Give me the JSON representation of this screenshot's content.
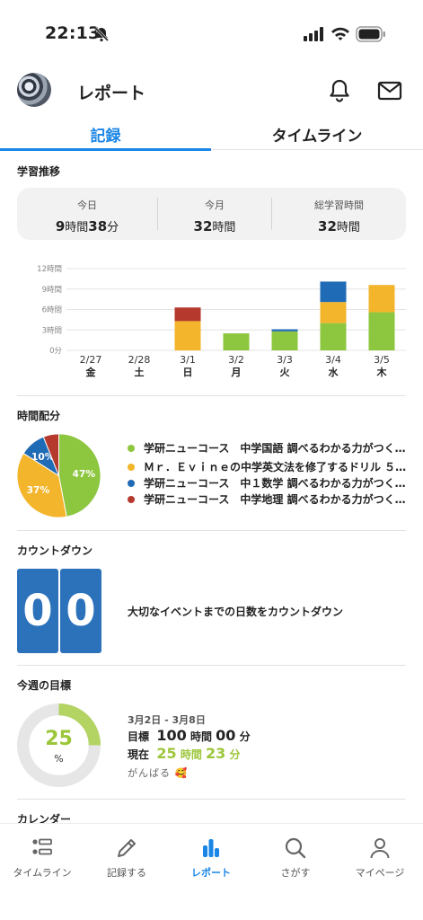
{
  "status": {
    "time": "22:13"
  },
  "header": {
    "title": "レポート"
  },
  "tabs": [
    {
      "label": "記録"
    },
    {
      "label": "タイムライン"
    }
  ],
  "study_trend": {
    "title": "学習推移",
    "summary": [
      {
        "label": "今日",
        "h": "9",
        "h_unit": "時間",
        "m": "38",
        "m_unit": "分"
      },
      {
        "label": "今月",
        "h": "32",
        "h_unit": "時間"
      },
      {
        "label": "総学習時間",
        "h": "32",
        "h_unit": "時間"
      }
    ]
  },
  "chart_data": {
    "type": "bar",
    "stacked": true,
    "y_ticks": [
      "12時間",
      "9時間",
      "6時間",
      "3時間",
      "0分"
    ],
    "ylim": [
      0,
      12
    ],
    "categories": [
      "2/27",
      "2/28",
      "3/1",
      "3/2",
      "3/3",
      "3/4",
      "3/5"
    ],
    "weekdays": [
      "金",
      "土",
      "日",
      "月",
      "火",
      "水",
      "木"
    ],
    "series": [
      {
        "color": "#8dc63f",
        "values": [
          0,
          0,
          0,
          2.5,
          2.8,
          4.0,
          5.6
        ]
      },
      {
        "color": "#f3b52b",
        "values": [
          0,
          0,
          4.3,
          0,
          0,
          3.1,
          4.0
        ]
      },
      {
        "color": "#1f6bb5",
        "values": [
          0,
          0,
          0,
          0,
          0.3,
          3.0,
          0
        ]
      },
      {
        "color": "#b5392d",
        "values": [
          0,
          0,
          2.0,
          0,
          0,
          0,
          0
        ]
      }
    ]
  },
  "time_distribution": {
    "title": "時間配分",
    "slices": [
      {
        "label": "学研ニューコース　中学国語 調べるわかる力がつく…",
        "value": 47,
        "pct_label": "47%",
        "color": "#8dc63f"
      },
      {
        "label": "Ｍｒ．Ｅｖｉｎｅの中学英文法を修了するドリル ５…",
        "value": 37,
        "pct_label": "37%",
        "color": "#f3b52b"
      },
      {
        "label": "学研ニューコース　中１数学 調べるわかる力がつく…",
        "value": 10,
        "pct_label": "10%",
        "color": "#1f6bb5"
      },
      {
        "label": "学研ニューコース　中学地理 調べるわかる力がつく…",
        "value": 6,
        "pct_label": "",
        "color": "#b5392d"
      }
    ]
  },
  "countdown": {
    "title": "カウントダウン",
    "digits": [
      "0",
      "0"
    ],
    "message": "大切なイベントまでの日数をカウントダウン"
  },
  "weekly_goal": {
    "title": "今週の目標",
    "progress": 25,
    "pct_symbol": "%",
    "range": "3月2日 - 3月8日",
    "goal_label": "目標",
    "goal_h": "100",
    "goal_m": "00",
    "current_label": "現在",
    "current_h": "25",
    "current_m": "23",
    "h_unit": "時間",
    "m_unit": "分",
    "cheer": "がんばる 🥰"
  },
  "calendar": {
    "title": "カレンダー"
  },
  "nav": [
    {
      "label": "タイムライン",
      "icon": "list-icon"
    },
    {
      "label": "記録する",
      "icon": "pencil-icon"
    },
    {
      "label": "レポート",
      "icon": "bar-chart-icon"
    },
    {
      "label": "さがす",
      "icon": "search-icon"
    },
    {
      "label": "マイページ",
      "icon": "person-icon"
    }
  ],
  "colors": {
    "accent": "#1a86e6",
    "countdown": "#2c72bb",
    "goal": "#9cc63a"
  }
}
